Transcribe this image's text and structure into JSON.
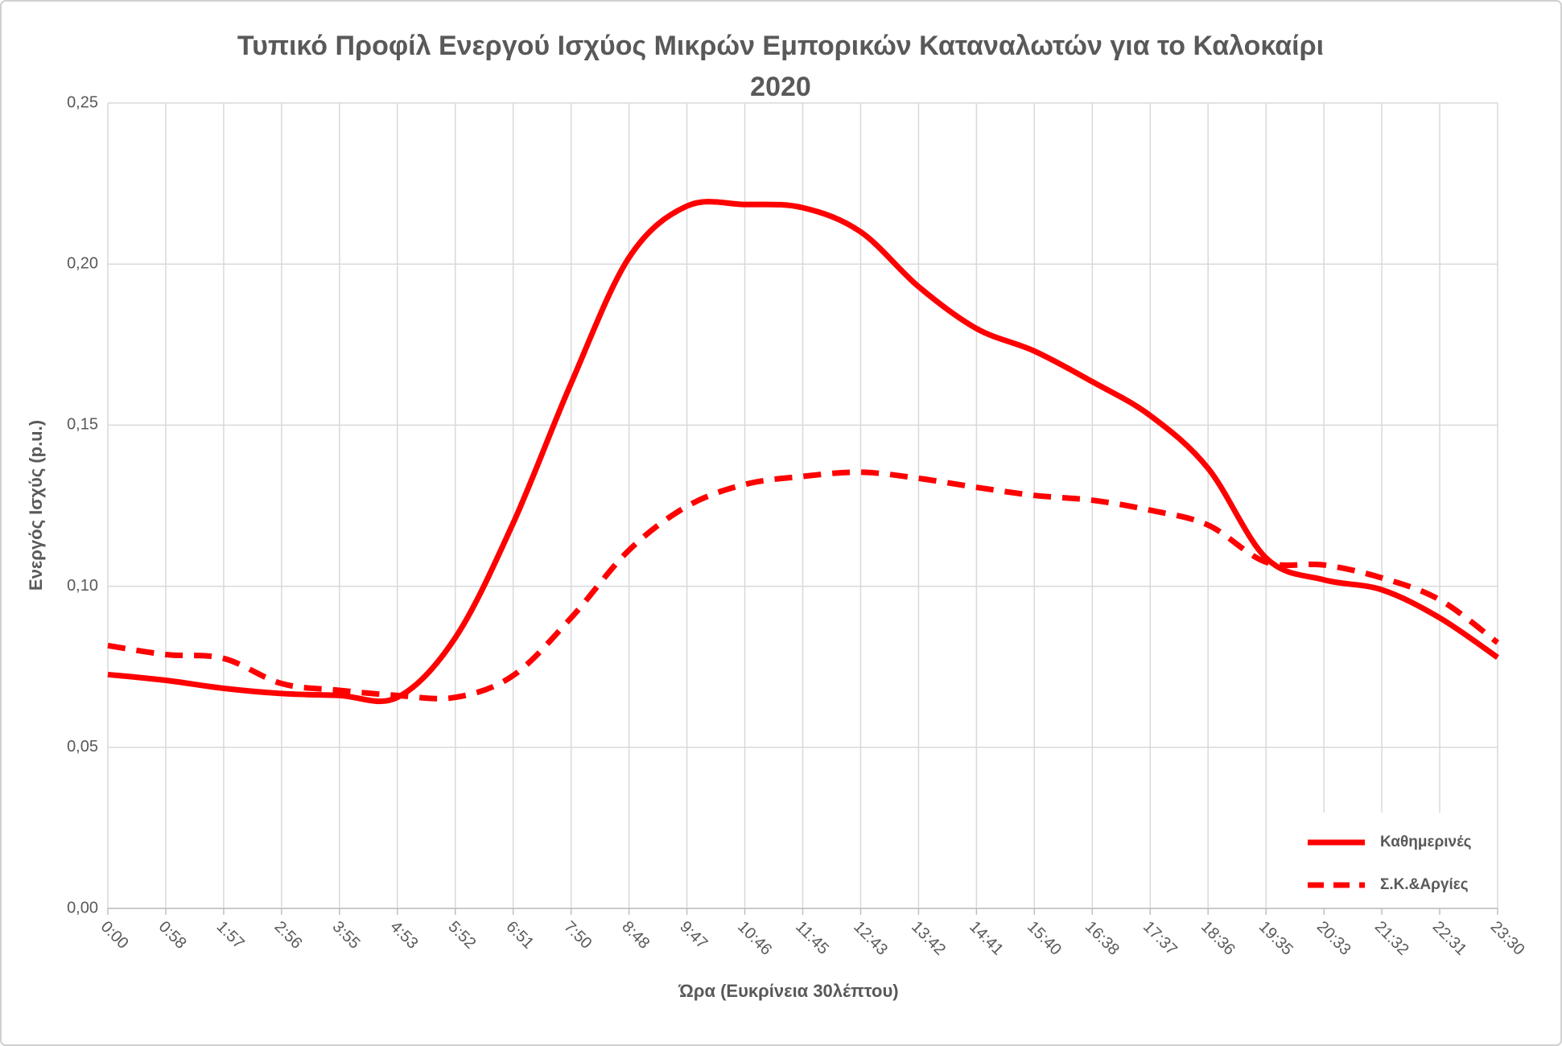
{
  "chart_data": {
    "type": "line",
    "title": "Τυπικό Προφίλ Ενεργού Ισχύος Μικρών Εμπορικών Καταναλωτών για το Καλοκαίρι 2020",
    "x_label": "Ώρα (Ευκρίνεια 30λέπτου)",
    "y_label": "Ενεργός Ισχύς (p.u.)",
    "categories": [
      "0:00",
      "0:58",
      "1:57",
      "2:56",
      "3:55",
      "4:53",
      "5:52",
      "6:51",
      "7:50",
      "8:48",
      "9:47",
      "10:46",
      "11:45",
      "12:43",
      "13:42",
      "14:41",
      "15:40",
      "16:38",
      "17:37",
      "18:36",
      "19:35",
      "20:33",
      "21:32",
      "22:31",
      "23:30"
    ],
    "series": [
      {
        "name": "Καθημερινές",
        "color": "#ff0000",
        "dash": false,
        "values": [
          0.0726,
          0.0708,
          0.0683,
          0.0667,
          0.0661,
          0.0655,
          0.084,
          0.1196,
          0.163,
          0.202,
          0.218,
          0.2185,
          0.2175,
          0.21,
          0.193,
          0.18,
          0.173,
          0.1635,
          0.153,
          0.1366,
          0.1088,
          0.102,
          0.0989,
          0.0902,
          0.0779
        ]
      },
      {
        "name": "Σ.Κ.&Αργίες",
        "color": "#ff0000",
        "dash": true,
        "values": [
          0.0816,
          0.0788,
          0.0776,
          0.0698,
          0.0677,
          0.0661,
          0.0655,
          0.0723,
          0.0902,
          0.1112,
          0.1248,
          0.1316,
          0.1341,
          0.1354,
          0.1335,
          0.1307,
          0.1282,
          0.1267,
          0.1236,
          0.119,
          0.1075,
          0.1066,
          0.1026,
          0.0958,
          0.0825
        ]
      }
    ],
    "ylim": [
      0,
      0.25
    ],
    "yticks": [
      {
        "value": 0,
        "label": "0,00"
      },
      {
        "value": 0.05,
        "label": "0,05"
      },
      {
        "value": 0.1,
        "label": "0,10"
      },
      {
        "value": 0.15,
        "label": "0,15"
      },
      {
        "value": 0.2,
        "label": "0,20"
      },
      {
        "value": 0.25,
        "label": "0,25"
      }
    ],
    "grid": true,
    "legend": "lower right"
  }
}
